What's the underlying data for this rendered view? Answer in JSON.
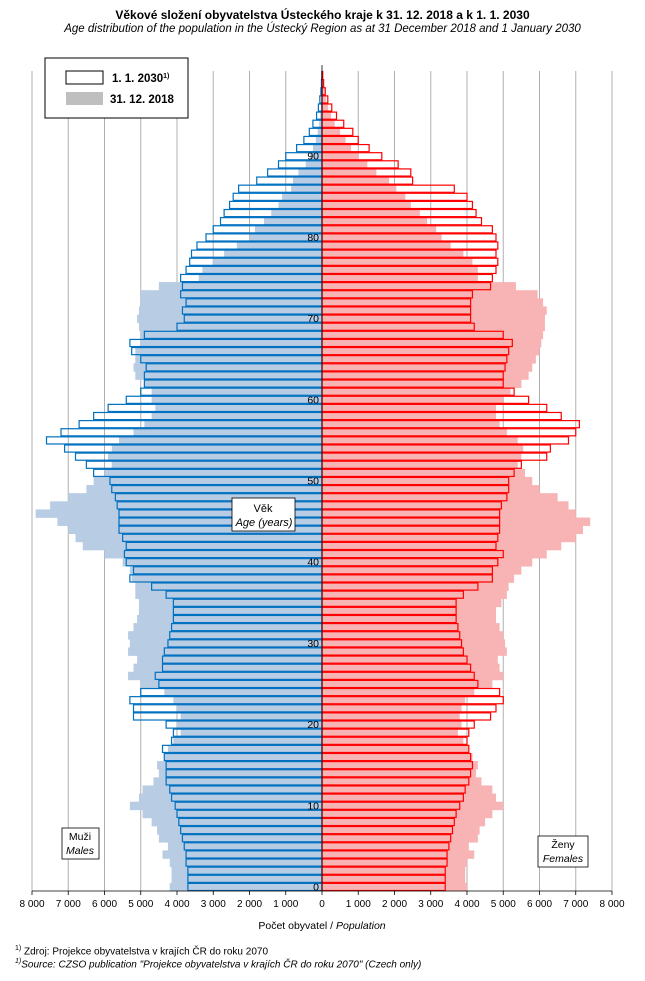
{
  "title": "Věkové složení obyvatelstva  Ústeckého  kraje k 31. 12. 2018  a k 1. 1. 2030",
  "subtitle": "Age distribution of the population  in the Ústecký Region  as at 31 December 2018  and 1 January  2030",
  "legend": {
    "projection_label": "1. 1. 2030",
    "projection_sup": "1)",
    "current_label": "31. 12. 2018"
  },
  "center_label": {
    "cz": "Věk",
    "en": "Age (years)"
  },
  "male_label": {
    "cz": "Muži",
    "en": "Males"
  },
  "female_label": {
    "cz": "Ženy",
    "en": "Females"
  },
  "xlabel": {
    "cz": "Počet obyvatel / ",
    "en": "Population"
  },
  "footnote": {
    "sup": "1)",
    "cz": "Zdroj: Projekce obyvatelstva v krajích ČR do roku 2070",
    "en": "Source: CZSO publication \"Projekce obyvatelstva v krajích ČR do roku 2070\" (Czech only)"
  },
  "colors": {
    "male_2018": "#b8cce4",
    "female_2018": "#f8b4b4",
    "male_2030": "#0070c0",
    "female_2030": "#ff0000",
    "grid": "#b0b0b0"
  },
  "chart_data": {
    "type": "bar",
    "orientation": "horizontal population pyramid",
    "xlim": [
      -8000,
      8000
    ],
    "x_ticks": [
      -8000,
      -7000,
      -6000,
      -5000,
      -4000,
      -3000,
      -2000,
      -1000,
      0,
      1000,
      2000,
      3000,
      4000,
      5000,
      6000,
      7000,
      8000
    ],
    "x_tick_labels": [
      "8 000",
      "7 000",
      "6 000",
      "5 000",
      "4 000",
      "3 000",
      "2 000",
      "1 000",
      "0",
      "1 000",
      "2 000",
      "3 000",
      "4 000",
      "5 000",
      "6 000",
      "7 000",
      "8 000"
    ],
    "y_ticks": [
      0,
      10,
      20,
      30,
      40,
      50,
      60,
      70,
      80,
      90
    ],
    "ages": [
      0,
      1,
      2,
      3,
      4,
      5,
      6,
      7,
      8,
      9,
      10,
      11,
      12,
      13,
      14,
      15,
      16,
      17,
      18,
      19,
      20,
      21,
      22,
      23,
      24,
      25,
      26,
      27,
      28,
      29,
      30,
      31,
      32,
      33,
      34,
      35,
      36,
      37,
      38,
      39,
      40,
      41,
      42,
      43,
      44,
      45,
      46,
      47,
      48,
      49,
      50,
      51,
      52,
      53,
      54,
      55,
      56,
      57,
      58,
      59,
      60,
      61,
      62,
      63,
      64,
      65,
      66,
      67,
      68,
      69,
      70,
      71,
      72,
      73,
      74,
      75,
      76,
      77,
      78,
      79,
      80,
      81,
      82,
      83,
      84,
      85,
      86,
      87,
      88,
      89,
      90,
      91,
      92,
      93,
      94,
      95,
      96,
      97,
      98,
      99,
      100
    ],
    "series": [
      {
        "name": "31. 12. 2018",
        "sex": "male",
        "values": [
          4200,
          4150,
          4150,
          4200,
          4400,
          4250,
          4500,
          4550,
          4700,
          4950,
          5300,
          5050,
          4950,
          4650,
          4500,
          4550,
          4350,
          4250,
          4100,
          3900,
          4000,
          3900,
          4000,
          4100,
          4350,
          5000,
          5350,
          5200,
          5100,
          5350,
          5300,
          5350,
          5200,
          5100,
          5050,
          5050,
          5150,
          5150,
          5250,
          5300,
          5500,
          6000,
          6600,
          6800,
          7000,
          7300,
          7900,
          7500,
          7000,
          6500,
          6300,
          6000,
          5800,
          5900,
          5800,
          5600,
          5200,
          4900,
          4700,
          4600,
          4700,
          4700,
          4900,
          5150,
          5200,
          5150,
          5150,
          5000,
          5000,
          5050,
          5100,
          5050,
          5000,
          5000,
          4500,
          3400,
          3300,
          3000,
          2700,
          2350,
          2000,
          1850,
          1600,
          1400,
          1200,
          1100,
          850,
          800,
          650,
          450,
          330,
          250,
          170,
          120,
          80,
          50,
          30,
          20,
          10,
          5,
          3
        ]
      },
      {
        "name": "31. 12. 2018",
        "sex": "female",
        "values": [
          4000,
          3950,
          3950,
          4000,
          4200,
          4050,
          4300,
          4350,
          4500,
          4700,
          5000,
          4800,
          4700,
          4400,
          4250,
          4300,
          4150,
          4050,
          3900,
          3750,
          3850,
          3800,
          3850,
          3950,
          4200,
          4700,
          5000,
          4900,
          4850,
          5100,
          5050,
          5000,
          4900,
          4800,
          4800,
          4950,
          5100,
          5150,
          5300,
          5500,
          5800,
          6200,
          6600,
          7000,
          7200,
          7400,
          7000,
          6800,
          6500,
          6000,
          5800,
          5600,
          5400,
          5500,
          5550,
          5400,
          5100,
          4900,
          4800,
          4800,
          5000,
          5200,
          5500,
          5700,
          5800,
          5900,
          6000,
          6050,
          6100,
          6150,
          6150,
          6200,
          6100,
          5950,
          5350,
          4300,
          4300,
          4150,
          3900,
          3550,
          3300,
          3150,
          2900,
          2700,
          2450,
          2300,
          2050,
          1850,
          1500,
          1250,
          1000,
          800,
          650,
          500,
          350,
          250,
          170,
          110,
          70,
          40,
          20
        ]
      },
      {
        "name": "1. 1. 2030",
        "sex": "male",
        "values": [
          3700,
          3700,
          3700,
          3750,
          3750,
          3800,
          3850,
          3900,
          3950,
          4000,
          4050,
          4150,
          4200,
          4300,
          4300,
          4300,
          4350,
          4400,
          4150,
          4100,
          4300,
          5200,
          5200,
          5300,
          5000,
          4500,
          4600,
          4400,
          4400,
          4350,
          4250,
          4200,
          4150,
          4100,
          4100,
          4100,
          4300,
          4700,
          5300,
          5200,
          5400,
          5450,
          5400,
          5500,
          5600,
          5600,
          5600,
          5650,
          5700,
          5800,
          5850,
          6300,
          6500,
          6800,
          7100,
          7600,
          7200,
          6700,
          6300,
          5900,
          5400,
          5000,
          4900,
          4900,
          4850,
          5000,
          5250,
          5300,
          4900,
          4000,
          3800,
          3850,
          3750,
          3900,
          3850,
          3900,
          3750,
          3650,
          3600,
          3450,
          3200,
          3000,
          2800,
          2700,
          2550,
          2450,
          2300,
          1800,
          1500,
          1200,
          1000,
          700,
          500,
          350,
          250,
          150,
          100,
          60,
          30,
          15,
          5
        ]
      },
      {
        "name": "1. 1. 2030",
        "sex": "female",
        "values": [
          3400,
          3400,
          3400,
          3450,
          3450,
          3500,
          3550,
          3600,
          3650,
          3700,
          3800,
          3900,
          3950,
          4050,
          4100,
          4150,
          4100,
          4050,
          4000,
          4050,
          4200,
          4650,
          4800,
          5000,
          4900,
          4300,
          4200,
          4100,
          4000,
          3900,
          3850,
          3800,
          3750,
          3700,
          3700,
          3700,
          3900,
          4300,
          4700,
          4700,
          4850,
          5000,
          4800,
          4850,
          4900,
          4900,
          4900,
          4950,
          5100,
          5150,
          5150,
          5300,
          5500,
          6200,
          6300,
          6800,
          7000,
          7100,
          6600,
          6200,
          5700,
          5300,
          5000,
          5000,
          5050,
          5100,
          5150,
          5250,
          5000,
          4200,
          4100,
          4100,
          4100,
          4150,
          4650,
          4700,
          4800,
          4850,
          4800,
          4850,
          4800,
          4700,
          4400,
          4250,
          4150,
          4000,
          3650,
          2500,
          2450,
          2100,
          1650,
          1300,
          1000,
          850,
          600,
          400,
          270,
          160,
          90,
          45,
          20
        ]
      }
    ]
  }
}
